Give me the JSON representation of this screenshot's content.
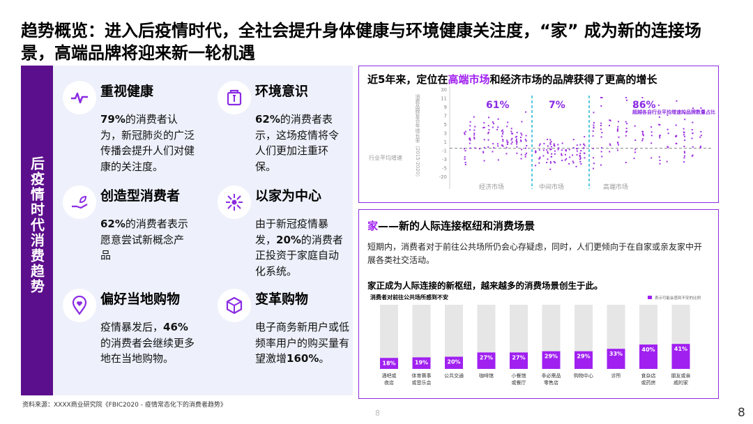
{
  "title": "趋势概览：进入后疫情时代，全社会提升身体健康与环境健康关注度，“家” 成为新的连接场景，高端品牌将迎来新一轮机遇",
  "sidebar_label": "后疫情时代消费趋势",
  "trends": [
    {
      "icon": "heartbeat-icon",
      "title": "重视健康",
      "pct": "79%",
      "text": "的消费者认为，新冠肺炎的广泛传播会提升人们对健康的关注度。"
    },
    {
      "icon": "box-icon",
      "title": "环境意识",
      "pct": "62%",
      "text": "的消费者表示，这场疫情将令人们更加注重环保。"
    },
    {
      "icon": "hand-plant-icon",
      "title": "创造型消费者",
      "pct": "62%",
      "text": "的消费者表示愿意尝试新概念产品"
    },
    {
      "icon": "network-icon",
      "title": "以家为中心",
      "pre": "由于新冠疫情暴发，",
      "pct": "20%",
      "text": "的消费者正投资于家庭自动化系统。"
    },
    {
      "icon": "location-heart-icon",
      "title": "偏好当地购物",
      "pre": "疫情暴发后，",
      "pct": "46%",
      "text": "的消费者会继续更多地在当地购物。"
    },
    {
      "icon": "cube-icon",
      "title": "变革购物",
      "pre": "电子商务新用户或低频率用户的购买量有望激增",
      "pct": "160%",
      "text": "。"
    }
  ],
  "top_box": {
    "heading_pre": "近5年来，定位在",
    "heading_hl": "高端市场",
    "heading_post": "和经济市场的品牌获得了更高的增长"
  },
  "scatter": {
    "ylabel": "消费品牌复合年增长率（2015-2020）",
    "yticks": [
      "30",
      "11",
      "9",
      "7",
      "5",
      "3",
      "1",
      "-1",
      "-3",
      "-5",
      "-20"
    ],
    "ref_label": "行业平均增速",
    "percents": [
      "61%",
      "7%",
      "86%"
    ],
    "legend": "超越各自行业平均增速的品牌数量占比",
    "groups": [
      "经济市场",
      "中间市场",
      "高端市场"
    ]
  },
  "bottom_box": {
    "heading_hl": "家",
    "heading_rest": "——新的人际连接枢纽和消费场景",
    "paragraph": "短期内，消费者对于前往公共场所仍会心存疑虑，同时，人们更倾向于在自家或亲友家中开展各类社交活动。",
    "bold_line": "家正成为人际连接的新枢纽，越来越多的消费场景创生于此。"
  },
  "chart_data": {
    "type": "bar",
    "title": "消费者对前往公共场所感到不安",
    "legend": "表示可能会感到不安的比例",
    "categories": [
      "酒吧或夜店",
      "体育赛事或音乐会",
      "公共交通",
      "咖啡馆",
      "小餐馆或餐厅",
      "非必需品零售店",
      "购物中心",
      "诊所",
      "食杂店或药房",
      "朋友或亲戚的家"
    ],
    "values": [
      18,
      19,
      20,
      27,
      27,
      29,
      29,
      33,
      40,
      41
    ],
    "labels": [
      "18%",
      "19%",
      "20%",
      "27%",
      "27%",
      "29%",
      "29%",
      "33%",
      "40%",
      "41%"
    ],
    "ylim": [
      0,
      100
    ],
    "colors": {
      "bar": "#a020f0",
      "track": "#e6e6e6"
    }
  },
  "source": "资料来源：XXXX商业研究院《FBIC2020 - 疫情常态化下的消费者趋势》",
  "page_center": "8",
  "page_right": "8"
}
